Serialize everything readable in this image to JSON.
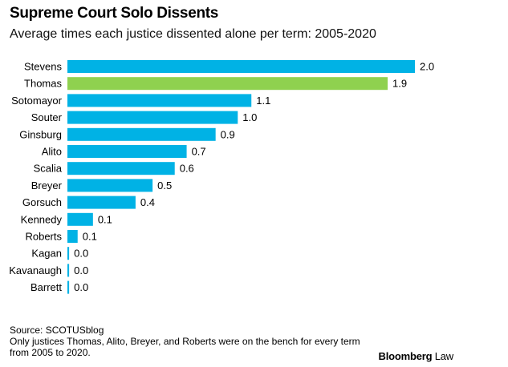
{
  "header": {
    "title": "Supreme Court Solo Dissents",
    "subtitle": "Average times each justice dissented alone per term: 2005-2020"
  },
  "colors": {
    "default_bar": "#00b2e5",
    "highlight_bar": "#8fd14f"
  },
  "chart_data": {
    "type": "bar",
    "orientation": "horizontal",
    "categories": [
      "Stevens",
      "Thomas",
      "Sotomayor",
      "Souter",
      "Ginsburg",
      "Alito",
      "Scalia",
      "Breyer",
      "Gorsuch",
      "Kennedy",
      "Roberts",
      "Kagan",
      "Kavanaugh",
      "Barrett"
    ],
    "values": [
      2.04,
      1.88,
      1.08,
      1.0,
      0.87,
      0.7,
      0.63,
      0.5,
      0.4,
      0.15,
      0.06,
      0.01,
      0.01,
      0.01
    ],
    "labels": [
      "2.0",
      "1.9",
      "1.1",
      "1.0",
      "0.9",
      "0.7",
      "0.6",
      "0.5",
      "0.4",
      "0.1",
      "0.1",
      "0.0",
      "0.0",
      "0.0"
    ],
    "highlight": [
      "Thomas"
    ],
    "xlim": [
      0,
      2.1
    ],
    "grid": false
  },
  "footer": {
    "source": "Source: SCOTUSblog",
    "note_line1": "Only justices Thomas, Alito, Breyer, and Roberts were on the bench for every term",
    "note_line2": "from 2005 to 2020."
  },
  "brand": {
    "name": "Bloomberg",
    "sub": "Law"
  }
}
